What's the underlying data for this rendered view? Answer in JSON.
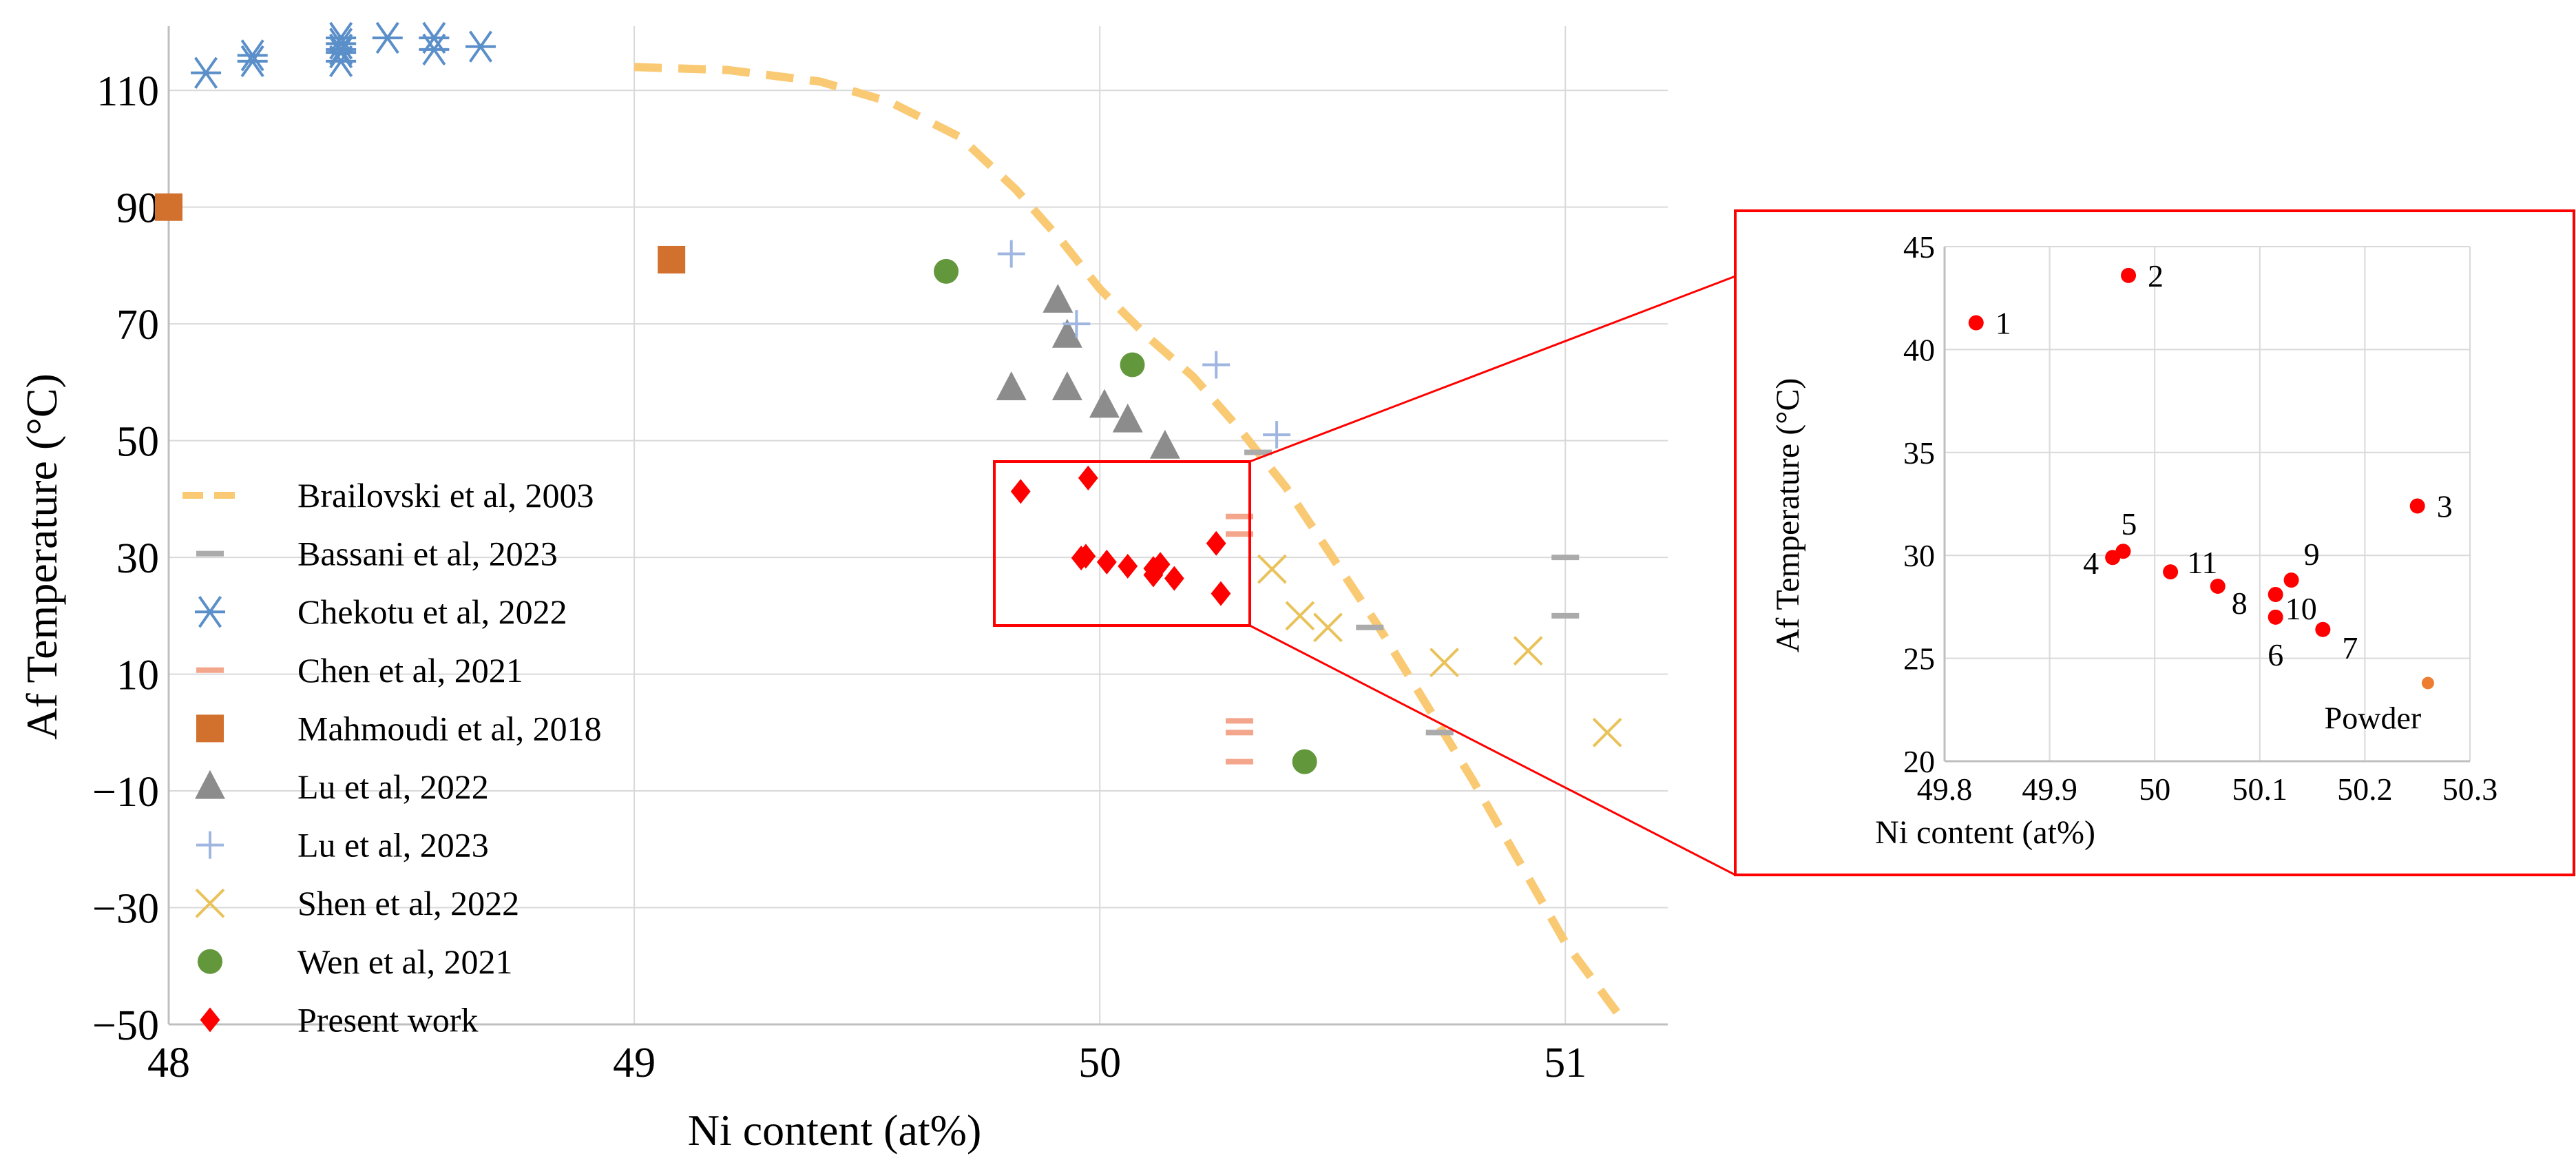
{
  "chart_data": [
    {
      "type": "scatter",
      "id": "main",
      "xlabel": "Ni content (at%)",
      "ylabel": "Af Temperature (°C)",
      "xlim": [
        48,
        51.22
      ],
      "ylim": [
        -50,
        121
      ],
      "xticks": [
        48,
        49,
        50,
        51
      ],
      "yticks": [
        110,
        90,
        70,
        50,
        30,
        10,
        -10,
        -30,
        -50
      ],
      "grid": true,
      "legend_position": "left",
      "series": [
        {
          "name": "Brailovski et al, 2003",
          "marker": "curve",
          "color": "#f9ca73",
          "points": [
            [
              49,
              114
            ],
            [
              49.2,
              113.5
            ],
            [
              49.4,
              111.5
            ],
            [
              49.55,
              108
            ],
            [
              49.7,
              102
            ],
            [
              49.82,
              93
            ],
            [
              49.92,
              84
            ],
            [
              50,
              76
            ],
            [
              50.1,
              68
            ],
            [
              50.2,
              61
            ],
            [
              50.3,
              52
            ],
            [
              50.4,
              42
            ],
            [
              50.5,
              30
            ],
            [
              50.6,
              18
            ],
            [
              50.7,
              5
            ],
            [
              50.8,
              -8
            ],
            [
              50.9,
              -22
            ],
            [
              51,
              -36
            ],
            [
              51.13,
              -50
            ]
          ]
        },
        {
          "name": "Bassani et al, 2023",
          "marker": "dash",
          "color": "#ababab",
          "points": [
            [
              50.34,
              48
            ],
            [
              50.58,
              18
            ],
            [
              50.73,
              0
            ],
            [
              51,
              30
            ],
            [
              51,
              20
            ]
          ]
        },
        {
          "name": "Chekotu et al, 2022",
          "marker": "asterisk",
          "color": "#5b8fc9",
          "points": [
            [
              48.08,
              113
            ],
            [
              48.18,
              115
            ],
            [
              48.18,
              116
            ],
            [
              48.37,
              115
            ],
            [
              48.37,
              116.5
            ],
            [
              48.37,
              117
            ],
            [
              48.37,
              118
            ],
            [
              48.37,
              119
            ],
            [
              48.47,
              119
            ],
            [
              48.57,
              117
            ],
            [
              48.57,
              119
            ],
            [
              48.67,
              117.5
            ]
          ]
        },
        {
          "name": "Chen et al, 2021",
          "marker": "dash",
          "color": "#f4a68d",
          "points": [
            [
              50.3,
              37
            ],
            [
              50.3,
              34
            ],
            [
              50.3,
              2
            ],
            [
              50.3,
              0
            ],
            [
              50.3,
              -5
            ]
          ]
        },
        {
          "name": "Mahmoudi et al, 2018",
          "marker": "square",
          "color": "#d2702d",
          "points": [
            [
              48,
              90
            ],
            [
              49.08,
              81
            ]
          ]
        },
        {
          "name": "Lu et al, 2022",
          "marker": "triangle",
          "color": "#8c8c8c",
          "points": [
            [
              49.81,
              59
            ],
            [
              49.91,
              74
            ],
            [
              49.93,
              68
            ],
            [
              49.93,
              59
            ],
            [
              50.01,
              56
            ],
            [
              50.06,
              53.5
            ],
            [
              50.14,
              49
            ]
          ]
        },
        {
          "name": "Lu et al, 2023",
          "marker": "plus",
          "color": "#9fb6e0",
          "points": [
            [
              49.81,
              82
            ],
            [
              49.95,
              70
            ],
            [
              50.25,
              63
            ],
            [
              50.38,
              51
            ]
          ]
        },
        {
          "name": "Shen et al, 2022",
          "marker": "x",
          "color": "#eac25a",
          "points": [
            [
              50.37,
              28
            ],
            [
              50.43,
              20
            ],
            [
              50.49,
              18
            ],
            [
              50.74,
              12
            ],
            [
              50.92,
              14
            ],
            [
              51.09,
              0
            ]
          ]
        },
        {
          "name": "Wen et al, 2021",
          "marker": "circle",
          "color": "#63973c",
          "points": [
            [
              49.67,
              79
            ],
            [
              50.07,
              63
            ],
            [
              50.44,
              -5
            ]
          ]
        },
        {
          "name": "Present work",
          "marker": "diamond",
          "color": "#ff0000",
          "points": [
            [
              49.83,
              41.3
            ],
            [
              49.975,
              43.6
            ],
            [
              50.25,
              32.4
            ],
            [
              49.96,
              29.9
            ],
            [
              49.97,
              30.2
            ],
            [
              50.115,
              27.0
            ],
            [
              50.16,
              26.4
            ],
            [
              50.06,
              28.5
            ],
            [
              50.13,
              28.8
            ],
            [
              50.115,
              28.1
            ],
            [
              50.015,
              29.2
            ],
            [
              50.26,
              23.8
            ]
          ]
        }
      ]
    },
    {
      "type": "scatter",
      "id": "inset",
      "xlabel": "Ni content (at%)",
      "ylabel": "Af Temperature (°C)",
      "xlim": [
        49.8,
        50.3
      ],
      "ylim": [
        20,
        45
      ],
      "xticks": [
        49.8,
        49.9,
        50,
        50.1,
        50.2,
        50.3
      ],
      "xtick_labels": [
        "49.8",
        "49.9",
        "50",
        "50.1",
        "50.2",
        "50.3"
      ],
      "yticks": [
        20,
        25,
        30,
        35,
        40,
        45
      ],
      "grid": true,
      "points": [
        {
          "label": "1",
          "x": 49.83,
          "y": 41.3
        },
        {
          "label": "2",
          "x": 49.975,
          "y": 43.6
        },
        {
          "label": "3",
          "x": 50.25,
          "y": 32.4
        },
        {
          "label": "4",
          "x": 49.96,
          "y": 29.9
        },
        {
          "label": "5",
          "x": 49.97,
          "y": 30.2
        },
        {
          "label": "6",
          "x": 50.115,
          "y": 27.0
        },
        {
          "label": "7",
          "x": 50.16,
          "y": 26.4
        },
        {
          "label": "8",
          "x": 50.06,
          "y": 28.5
        },
        {
          "label": "9",
          "x": 50.13,
          "y": 28.8
        },
        {
          "label": "10",
          "x": 50.115,
          "y": 28.1
        },
        {
          "label": "11",
          "x": 50.015,
          "y": 29.2
        },
        {
          "label": "Powder",
          "x": 50.26,
          "y": 23.8
        }
      ],
      "point_color": "#ff0000",
      "powder_color": "#ed7d31"
    }
  ],
  "zoom_box_color": "#ff0000"
}
